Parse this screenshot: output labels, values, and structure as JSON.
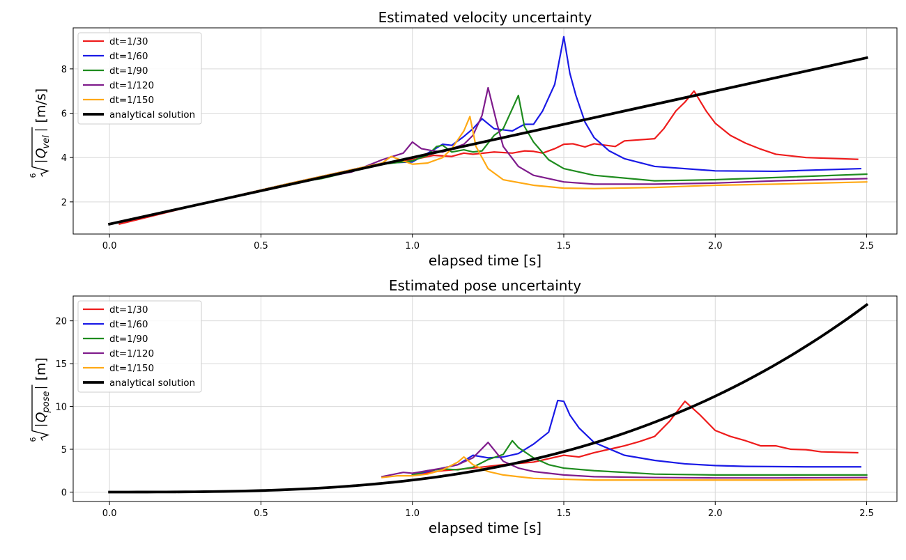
{
  "chart_data": [
    {
      "type": "line",
      "title": "Estimated velocity uncertainty",
      "xlabel": "elapsed time [s]",
      "ylabel": "|Q_vel| [m/s]",
      "ylabel_parts": {
        "root_index": "6",
        "symbol": "Q",
        "subscript": "vel",
        "unit": "[m/s]"
      },
      "xlim": [
        -0.12,
        2.6
      ],
      "ylim": [
        0.55,
        9.85
      ],
      "xticks": [
        0.0,
        0.5,
        1.0,
        1.5,
        2.0,
        2.5
      ],
      "xtick_labels": [
        "0.0",
        "0.5",
        "1.0",
        "1.5",
        "2.0",
        "2.5"
      ],
      "yticks": [
        2,
        4,
        6,
        8
      ],
      "ytick_labels": [
        "2",
        "4",
        "6",
        "8"
      ],
      "grid": true,
      "legend": "top-left",
      "series": [
        {
          "name": "dt=1/30",
          "color": "#ee1c1c",
          "width": 2.2,
          "x": [
            0.033,
            0.3,
            0.6,
            0.9,
            1.0,
            1.07,
            1.13,
            1.17,
            1.2,
            1.27,
            1.33,
            1.37,
            1.4,
            1.43,
            1.47,
            1.5,
            1.53,
            1.57,
            1.6,
            1.67,
            1.7,
            1.8,
            1.83,
            1.87,
            1.9,
            1.93,
            1.97,
            2.0,
            2.05,
            2.1,
            2.15,
            2.2,
            2.3,
            2.47
          ],
          "y": [
            1.0,
            1.9,
            2.85,
            3.75,
            3.9,
            4.1,
            4.05,
            4.2,
            4.15,
            4.25,
            4.2,
            4.3,
            4.28,
            4.2,
            4.4,
            4.6,
            4.62,
            4.48,
            4.62,
            4.5,
            4.75,
            4.85,
            5.3,
            6.1,
            6.5,
            7.0,
            6.1,
            5.55,
            5.0,
            4.65,
            4.38,
            4.15,
            4.0,
            3.92
          ]
        },
        {
          "name": "dt=1/60",
          "color": "#1a1ae6",
          "width": 2.2,
          "x": [
            0.0,
            0.3,
            0.6,
            0.9,
            1.0,
            1.07,
            1.1,
            1.13,
            1.17,
            1.2,
            1.23,
            1.27,
            1.3,
            1.33,
            1.37,
            1.4,
            1.43,
            1.47,
            1.5,
            1.52,
            1.54,
            1.57,
            1.6,
            1.65,
            1.7,
            1.8,
            2.0,
            2.2,
            2.48
          ],
          "y": [
            1.0,
            1.9,
            2.85,
            3.75,
            3.8,
            4.35,
            4.6,
            4.55,
            4.95,
            5.3,
            5.75,
            5.3,
            5.25,
            5.2,
            5.5,
            5.5,
            6.1,
            7.3,
            9.45,
            7.8,
            6.8,
            5.6,
            4.9,
            4.3,
            3.95,
            3.6,
            3.4,
            3.38,
            3.5
          ]
        },
        {
          "name": "dt=1/90",
          "color": "#1f8c1f",
          "width": 2.2,
          "x": [
            0.0,
            0.3,
            0.6,
            0.7,
            0.9,
            1.0,
            1.05,
            1.08,
            1.1,
            1.13,
            1.17,
            1.2,
            1.23,
            1.27,
            1.3,
            1.32,
            1.35,
            1.37,
            1.4,
            1.45,
            1.5,
            1.6,
            1.8,
            2.0,
            2.2,
            2.5
          ],
          "y": [
            1.0,
            1.9,
            2.85,
            3.05,
            3.7,
            3.85,
            4.1,
            4.5,
            4.55,
            4.25,
            4.35,
            4.25,
            4.3,
            5.0,
            5.3,
            5.9,
            6.8,
            5.4,
            4.7,
            3.9,
            3.5,
            3.2,
            2.95,
            3.0,
            3.1,
            3.25
          ]
        },
        {
          "name": "dt=1/120",
          "color": "#7f1c8c",
          "width": 2.2,
          "x": [
            0.0,
            0.3,
            0.6,
            0.8,
            0.9,
            0.97,
            1.0,
            1.03,
            1.07,
            1.1,
            1.13,
            1.17,
            1.2,
            1.23,
            1.25,
            1.28,
            1.3,
            1.35,
            1.4,
            1.5,
            1.6,
            1.8,
            2.0,
            2.2,
            2.5
          ],
          "y": [
            1.0,
            1.9,
            2.85,
            3.35,
            3.9,
            4.2,
            4.7,
            4.4,
            4.3,
            4.25,
            4.4,
            4.6,
            5.0,
            5.9,
            7.15,
            5.5,
            4.5,
            3.6,
            3.2,
            2.9,
            2.8,
            2.8,
            2.85,
            2.95,
            3.05
          ]
        },
        {
          "name": "dt=1/150",
          "color": "#ffa914",
          "width": 2.2,
          "x": [
            0.0,
            0.3,
            0.6,
            0.9,
            0.93,
            1.0,
            1.05,
            1.1,
            1.13,
            1.17,
            1.19,
            1.21,
            1.25,
            1.3,
            1.4,
            1.5,
            1.6,
            1.8,
            2.0,
            2.2,
            2.5
          ],
          "y": [
            1.0,
            1.9,
            2.85,
            3.75,
            4.05,
            3.7,
            3.75,
            4.0,
            4.4,
            5.2,
            5.85,
            4.5,
            3.5,
            3.0,
            2.75,
            2.62,
            2.6,
            2.65,
            2.75,
            2.8,
            2.9
          ]
        },
        {
          "name": "analytical solution",
          "color": "#000000",
          "width": 3.8,
          "x": [
            0.0,
            2.5
          ],
          "y": [
            1.0,
            8.5
          ]
        }
      ]
    },
    {
      "type": "line",
      "title": "Estimated pose uncertainty",
      "xlabel": "elapsed time [s]",
      "ylabel": "|Q_pose| [m]",
      "ylabel_parts": {
        "root_index": "6",
        "symbol": "Q",
        "subscript": "pose",
        "unit": "[m]"
      },
      "xlim": [
        -0.12,
        2.6
      ],
      "ylim": [
        -1.1,
        22.9
      ],
      "xticks": [
        0.0,
        0.5,
        1.0,
        1.5,
        2.0,
        2.5
      ],
      "xtick_labels": [
        "0.0",
        "0.5",
        "1.0",
        "1.5",
        "2.0",
        "2.5"
      ],
      "yticks": [
        0,
        5,
        10,
        15,
        20
      ],
      "ytick_labels": [
        "0",
        "5",
        "10",
        "15",
        "20"
      ],
      "grid": true,
      "legend": "top-left",
      "series": [
        {
          "name": "dt=1/30",
          "color": "#ee1c1c",
          "width": 2.2,
          "x": [
            1.0,
            1.1,
            1.2,
            1.3,
            1.4,
            1.5,
            1.55,
            1.6,
            1.7,
            1.75,
            1.8,
            1.85,
            1.9,
            1.95,
            2.0,
            2.05,
            2.1,
            2.15,
            2.2,
            2.25,
            2.3,
            2.35,
            2.47
          ],
          "y": [
            2.0,
            2.5,
            2.8,
            3.2,
            3.5,
            4.3,
            4.1,
            4.6,
            5.4,
            5.9,
            6.5,
            8.3,
            10.6,
            9.0,
            7.2,
            6.5,
            6.0,
            5.4,
            5.4,
            5.0,
            4.95,
            4.7,
            4.6
          ]
        },
        {
          "name": "dt=1/60",
          "color": "#1a1ae6",
          "width": 2.2,
          "x": [
            1.0,
            1.1,
            1.15,
            1.2,
            1.25,
            1.3,
            1.35,
            1.4,
            1.45,
            1.48,
            1.5,
            1.52,
            1.55,
            1.6,
            1.7,
            1.8,
            1.9,
            2.0,
            2.1,
            2.3,
            2.48
          ],
          "y": [
            2.0,
            2.8,
            3.2,
            4.3,
            4.0,
            4.1,
            4.5,
            5.6,
            7.0,
            10.7,
            10.6,
            9.0,
            7.5,
            5.8,
            4.3,
            3.7,
            3.3,
            3.1,
            3.0,
            2.95,
            2.95
          ]
        },
        {
          "name": "dt=1/90",
          "color": "#1f8c1f",
          "width": 2.2,
          "x": [
            1.0,
            1.05,
            1.1,
            1.15,
            1.2,
            1.25,
            1.3,
            1.33,
            1.35,
            1.4,
            1.45,
            1.5,
            1.6,
            1.7,
            1.8,
            2.0,
            2.2,
            2.5
          ],
          "y": [
            2.0,
            2.5,
            2.7,
            2.6,
            2.9,
            3.8,
            4.4,
            6.0,
            5.2,
            4.0,
            3.2,
            2.8,
            2.5,
            2.3,
            2.1,
            2.0,
            2.0,
            2.0
          ]
        },
        {
          "name": "dt=1/120",
          "color": "#7f1c8c",
          "width": 2.2,
          "x": [
            0.9,
            0.97,
            1.0,
            1.05,
            1.1,
            1.15,
            1.2,
            1.25,
            1.3,
            1.35,
            1.4,
            1.5,
            1.6,
            1.8,
            2.0,
            2.2,
            2.5
          ],
          "y": [
            1.8,
            2.3,
            2.2,
            2.5,
            2.8,
            3.2,
            4.0,
            5.8,
            3.6,
            2.8,
            2.4,
            2.0,
            1.8,
            1.7,
            1.65,
            1.65,
            1.7
          ]
        },
        {
          "name": "dt=1/150",
          "color": "#ffa914",
          "width": 2.2,
          "x": [
            0.9,
            0.95,
            1.0,
            1.05,
            1.1,
            1.15,
            1.17,
            1.2,
            1.25,
            1.3,
            1.35,
            1.4,
            1.5,
            1.6,
            1.8,
            2.0,
            2.2,
            2.5
          ],
          "y": [
            1.7,
            1.9,
            1.9,
            2.1,
            2.6,
            3.5,
            4.1,
            3.2,
            2.4,
            2.0,
            1.8,
            1.6,
            1.5,
            1.4,
            1.4,
            1.4,
            1.4,
            1.45
          ]
        },
        {
          "name": "analytical solution",
          "color": "#000000",
          "width": 3.8,
          "curve": "cubic",
          "coef": 1.4,
          "x": [
            0.0,
            0.25,
            0.5,
            0.75,
            1.0,
            1.25,
            1.5,
            1.75,
            2.0,
            2.25,
            2.5
          ],
          "y": [
            0.0,
            0.022,
            0.175,
            0.59,
            1.4,
            2.73,
            4.73,
            7.5,
            11.2,
            15.95,
            21.875
          ]
        }
      ]
    }
  ]
}
